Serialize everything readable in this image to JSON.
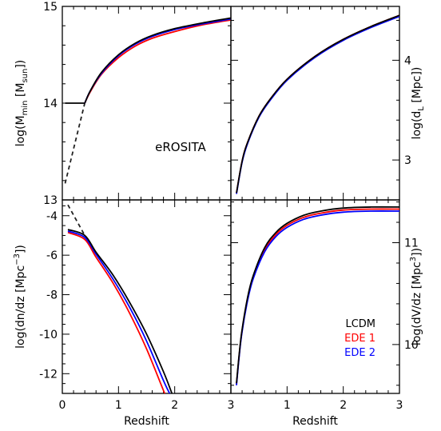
{
  "chart_data": [
    {
      "panel": "top-left",
      "type": "line",
      "ylabel_base": "log(M",
      "ylabel_sub1": "min",
      "ylabel_mid": " [M",
      "ylabel_sub2": "sun",
      "ylabel_end": "])",
      "xlim": [
        0,
        3
      ],
      "ylim": [
        13,
        15
      ],
      "yticks": [
        "13",
        "14",
        "15"
      ],
      "annotation": "eROSITA",
      "series": [
        {
          "name": "LCDM",
          "color": "#000000",
          "x": [
            0.4,
            0.5,
            0.7,
            1.0,
            1.3,
            1.6,
            2.0,
            2.5,
            3.0
          ],
          "y": [
            14.0,
            14.13,
            14.32,
            14.5,
            14.62,
            14.7,
            14.77,
            14.83,
            14.88
          ]
        },
        {
          "name": "EDE 1",
          "color": "#ff0000",
          "x": [
            0.4,
            0.5,
            0.7,
            1.0,
            1.3,
            1.6,
            2.0,
            2.5,
            3.0
          ],
          "y": [
            14.0,
            14.12,
            14.3,
            14.47,
            14.59,
            14.67,
            14.74,
            14.81,
            14.86
          ]
        },
        {
          "name": "EDE 2",
          "color": "#0000ff",
          "x": [
            0.4,
            0.5,
            0.7,
            1.0,
            1.3,
            1.6,
            2.0,
            2.5,
            3.0
          ],
          "y": [
            14.0,
            14.13,
            14.31,
            14.49,
            14.61,
            14.69,
            14.76,
            14.82,
            14.87
          ]
        }
      ],
      "plateau": {
        "x": [
          0.05,
          0.4
        ],
        "y": [
          14.0,
          14.0
        ]
      },
      "dashed": {
        "x": [
          0.05,
          0.4
        ],
        "y": [
          13.17,
          14.0
        ]
      }
    },
    {
      "panel": "top-right",
      "type": "line",
      "ylabel_base": "log(d",
      "ylabel_sub1": "L",
      "ylabel_end": " [Mpc])",
      "xlim": [
        0,
        3
      ],
      "ylim": [
        2.6,
        4.54
      ],
      "yticks": [
        "3",
        "4"
      ],
      "series": [
        {
          "name": "LCDM",
          "color": "#000000",
          "x": [
            0.1,
            0.2,
            0.3,
            0.5,
            0.7,
            1.0,
            1.5,
            2.0,
            2.5,
            3.0
          ],
          "y": [
            2.67,
            2.99,
            3.18,
            3.44,
            3.61,
            3.81,
            4.04,
            4.21,
            4.34,
            4.45
          ]
        },
        {
          "name": "EDE 1",
          "color": "#ff0000",
          "x": [
            0.1,
            0.2,
            0.3,
            0.5,
            0.7,
            1.0,
            1.5,
            2.0,
            2.5,
            3.0
          ],
          "y": [
            2.67,
            2.99,
            3.18,
            3.44,
            3.61,
            3.81,
            4.04,
            4.21,
            4.34,
            4.45
          ]
        },
        {
          "name": "EDE 2",
          "color": "#0000ff",
          "x": [
            0.1,
            0.2,
            0.3,
            0.5,
            0.7,
            1.0,
            1.5,
            2.0,
            2.5,
            3.0
          ],
          "y": [
            2.66,
            2.98,
            3.17,
            3.43,
            3.6,
            3.8,
            4.03,
            4.2,
            4.33,
            4.44
          ]
        }
      ]
    },
    {
      "panel": "bottom-left",
      "type": "line",
      "ylabel_base": "log(dn/dz  [Mpc",
      "ylabel_sup": "−3",
      "ylabel_end": "])",
      "xlim": [
        0,
        3
      ],
      "ylim": [
        -13,
        -3.2
      ],
      "yticks": [
        "-4",
        "-6",
        "-8",
        "-10",
        "-12"
      ],
      "xticks": [
        "0",
        "1",
        "2",
        "3"
      ],
      "xlabel": "Redshift",
      "series": [
        {
          "name": "LCDM",
          "color": "#000000",
          "x": [
            0.1,
            0.4,
            0.6,
            0.9,
            1.2,
            1.5,
            1.8,
            1.95
          ],
          "y": [
            -4.7,
            -5.0,
            -5.85,
            -7.0,
            -8.4,
            -10.0,
            -11.9,
            -13.0
          ]
        },
        {
          "name": "EDE 1",
          "color": "#ff0000",
          "x": [
            0.1,
            0.4,
            0.6,
            0.9,
            1.2,
            1.5,
            1.8,
            1.83
          ],
          "y": [
            -4.85,
            -5.2,
            -6.1,
            -7.4,
            -8.95,
            -10.75,
            -12.85,
            -13.0
          ]
        },
        {
          "name": "EDE 2",
          "color": "#0000ff",
          "x": [
            0.1,
            0.4,
            0.6,
            0.9,
            1.2,
            1.5,
            1.8,
            1.91
          ],
          "y": [
            -4.78,
            -5.1,
            -5.95,
            -7.2,
            -8.65,
            -10.35,
            -12.35,
            -13.0
          ]
        }
      ],
      "dashed": {
        "x": [
          0.1,
          0.4
        ],
        "y": [
          -3.45,
          -5.0
        ]
      }
    },
    {
      "panel": "bottom-right",
      "type": "line",
      "ylabel_base": "log(dV/dz  [Mpc",
      "ylabel_sup": "3",
      "ylabel_end": "])",
      "xlim": [
        0,
        3
      ],
      "ylim": [
        9.52,
        11.42
      ],
      "yticks": [
        "10",
        "11"
      ],
      "xticks": [
        "1",
        "2",
        "3"
      ],
      "xlabel": "Redshift",
      "series": [
        {
          "name": "LCDM",
          "color": "#000000",
          "x": [
            0.1,
            0.15,
            0.2,
            0.3,
            0.4,
            0.6,
            0.8,
            1.0,
            1.3,
            1.6,
            2.0,
            2.5,
            3.0
          ],
          "y": [
            9.62,
            9.92,
            10.15,
            10.47,
            10.68,
            10.95,
            11.1,
            11.19,
            11.27,
            11.31,
            11.34,
            11.35,
            11.35
          ]
        },
        {
          "name": "EDE 1",
          "color": "#ff0000",
          "x": [
            0.1,
            0.15,
            0.2,
            0.3,
            0.4,
            0.6,
            0.8,
            1.0,
            1.3,
            1.6,
            2.0,
            2.5,
            3.0
          ],
          "y": [
            9.61,
            9.91,
            10.14,
            10.46,
            10.67,
            10.93,
            11.08,
            11.17,
            11.25,
            11.29,
            11.32,
            11.33,
            11.33
          ]
        },
        {
          "name": "EDE 2",
          "color": "#0000ff",
          "x": [
            0.1,
            0.15,
            0.2,
            0.3,
            0.4,
            0.6,
            0.8,
            1.0,
            1.3,
            1.6,
            2.0,
            2.5,
            3.0
          ],
          "y": [
            9.6,
            9.9,
            10.13,
            10.44,
            10.65,
            10.91,
            11.06,
            11.15,
            11.23,
            11.27,
            11.3,
            11.31,
            11.31
          ]
        }
      ],
      "legend": [
        {
          "label": "LCDM",
          "color": "#000000"
        },
        {
          "label": "EDE 1",
          "color": "#ff0000"
        },
        {
          "label": "EDE 2",
          "color": "#0000ff"
        }
      ]
    }
  ]
}
